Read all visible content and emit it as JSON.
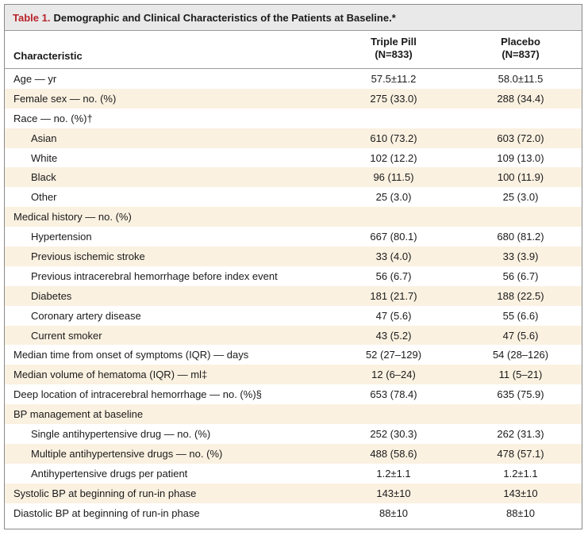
{
  "title": {
    "label": "Table 1.",
    "text": "Demographic and Clinical Characteristics of the Patients at Baseline.*"
  },
  "header": {
    "characteristic": "Characteristic",
    "col1": {
      "name": "Triple Pill",
      "n": "(N=833)"
    },
    "col2": {
      "name": "Placebo",
      "n": "(N=837)"
    }
  },
  "rows": [
    {
      "label": "Age — yr",
      "v1": "57.5±11.2",
      "v2": "58.0±11.5",
      "indent": false
    },
    {
      "label": "Female sex — no. (%)",
      "v1": "275 (33.0)",
      "v2": "288 (34.4)",
      "indent": false
    },
    {
      "label": "Race — no. (%)†",
      "v1": "",
      "v2": "",
      "indent": false
    },
    {
      "label": "Asian",
      "v1": "610 (73.2)",
      "v2": "603 (72.0)",
      "indent": true
    },
    {
      "label": "White",
      "v1": "102 (12.2)",
      "v2": "109 (13.0)",
      "indent": true
    },
    {
      "label": "Black",
      "v1": "96 (11.5)",
      "v2": "100 (11.9)",
      "indent": true
    },
    {
      "label": "Other",
      "v1": "25 (3.0)",
      "v2": "25 (3.0)",
      "indent": true
    },
    {
      "label": "Medical history — no. (%)",
      "v1": "",
      "v2": "",
      "indent": false
    },
    {
      "label": "Hypertension",
      "v1": "667 (80.1)",
      "v2": "680 (81.2)",
      "indent": true
    },
    {
      "label": "Previous ischemic stroke",
      "v1": "33 (4.0)",
      "v2": "33 (3.9)",
      "indent": true
    },
    {
      "label": "Previous intracerebral hemorrhage before index event",
      "v1": "56 (6.7)",
      "v2": "56 (6.7)",
      "indent": true
    },
    {
      "label": "Diabetes",
      "v1": "181 (21.7)",
      "v2": "188 (22.5)",
      "indent": true
    },
    {
      "label": "Coronary artery disease",
      "v1": "47 (5.6)",
      "v2": "55 (6.6)",
      "indent": true
    },
    {
      "label": "Current smoker",
      "v1": "43 (5.2)",
      "v2": "47 (5.6)",
      "indent": true
    },
    {
      "label": "Median time from onset of symptoms (IQR) — days",
      "v1": "52 (27–129)",
      "v2": "54 (28–126)",
      "indent": false
    },
    {
      "label": "Median volume of hematoma (IQR) — ml‡",
      "v1": "12 (6–24)",
      "v2": "11 (5–21)",
      "indent": false
    },
    {
      "label": "Deep location of intracerebral hemorrhage — no. (%)§",
      "v1": "653 (78.4)",
      "v2": "635 (75.9)",
      "indent": false
    },
    {
      "label": "BP management at baseline",
      "v1": "",
      "v2": "",
      "indent": false
    },
    {
      "label": "Single antihypertensive drug — no. (%)",
      "v1": "252 (30.3)",
      "v2": "262 (31.3)",
      "indent": true
    },
    {
      "label": "Multiple antihypertensive drugs — no. (%)",
      "v1": "488 (58.6)",
      "v2": "478 (57.1)",
      "indent": true
    },
    {
      "label": "Antihypertensive drugs per patient",
      "v1": "1.2±1.1",
      "v2": "1.2±1.1",
      "indent": true
    },
    {
      "label": "Systolic BP at beginning of run-in phase",
      "v1": "143±10",
      "v2": "143±10",
      "indent": false
    },
    {
      "label": "Diastolic BP at beginning of run-in phase",
      "v1": "88±10",
      "v2": "88±10",
      "indent": false
    }
  ],
  "colors": {
    "title_label": "#b8242a",
    "row_shade": "#fbf1e1",
    "title_bg": "#e9e9e9"
  }
}
